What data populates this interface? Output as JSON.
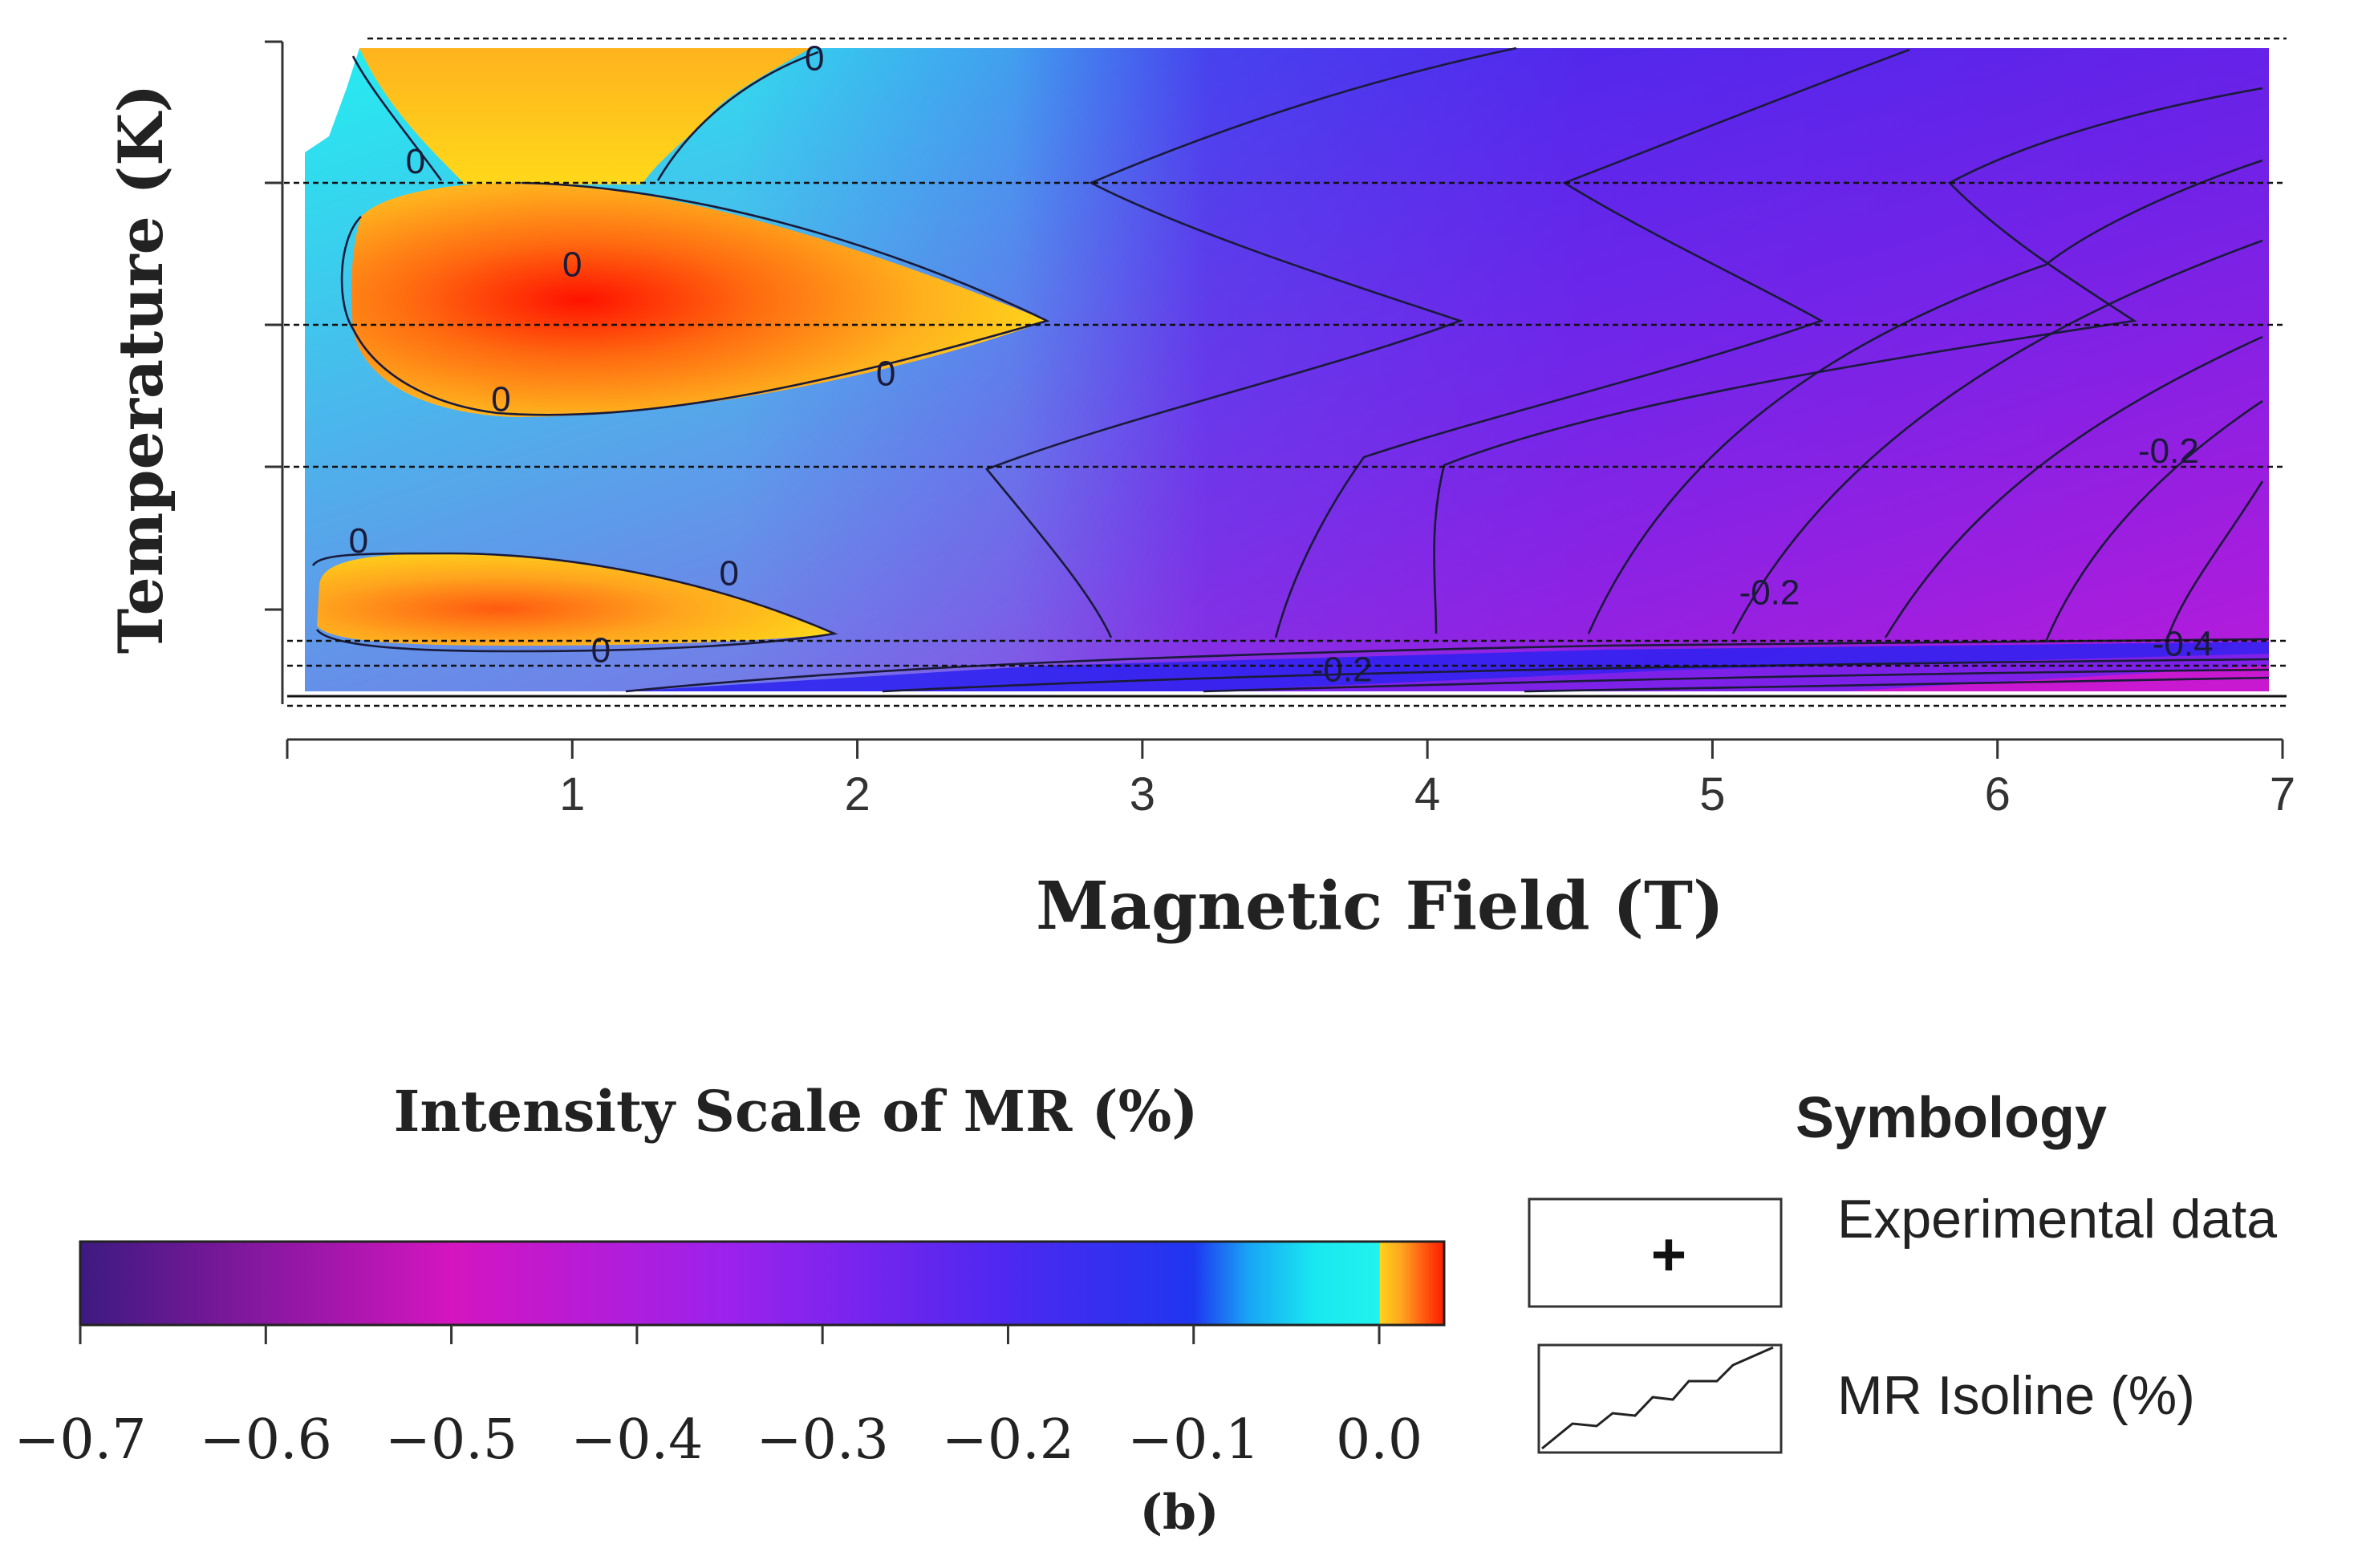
{
  "chart_data": {
    "type": "heatmap",
    "title": "",
    "xlabel": "Magnetic Field (T)",
    "ylabel": "Temperature (K)",
    "xlim": [
      0,
      7
    ],
    "x_ticks": [
      "1",
      "2",
      "3",
      "4",
      "5",
      "6",
      "7"
    ],
    "y_tick_count": 5,
    "caption": "(b)",
    "isoline_labels": [
      {
        "text": "0",
        "x": 1.85,
        "t": 0.02
      },
      {
        "text": "0",
        "x": 0.45,
        "t": 0.18
      },
      {
        "text": "0",
        "x": 1.0,
        "t": 0.34
      },
      {
        "text": "0",
        "x": 2.1,
        "t": 0.51
      },
      {
        "text": "0",
        "x": 0.75,
        "t": 0.55
      },
      {
        "text": "0",
        "x": 0.25,
        "t": 0.77
      },
      {
        "text": "0",
        "x": 1.55,
        "t": 0.82
      },
      {
        "text": "0",
        "x": 1.1,
        "t": 0.94
      },
      {
        "text": "-0.2",
        "x": 6.6,
        "t": 0.63
      },
      {
        "text": "-0.2",
        "x": 5.2,
        "t": 0.85
      },
      {
        "text": "-0.2",
        "x": 3.7,
        "t": 0.97
      },
      {
        "text": "-0.4",
        "x": 6.65,
        "t": 0.93
      }
    ],
    "colorbar": {
      "title": "Intensity Scale of MR (%)",
      "range": [
        -0.7,
        0.035
      ],
      "tick_labels": [
        "−0.7",
        "−0.6",
        "−0.5",
        "−0.4",
        "−0.3",
        "−0.2",
        "−0.1",
        "0.0"
      ],
      "tick_values": [
        -0.7,
        -0.6,
        -0.5,
        -0.4,
        -0.3,
        -0.2,
        -0.1,
        0.0
      ],
      "stops": [
        {
          "value": -0.7,
          "color": "#3d1a80"
        },
        {
          "value": -0.5,
          "color": "#d415c0"
        },
        {
          "value": -0.35,
          "color": "#9b22ec"
        },
        {
          "value": -0.2,
          "color": "#4d28f0"
        },
        {
          "value": -0.1,
          "color": "#1f36f0"
        },
        {
          "value": -0.07,
          "color": "#19a6f5"
        },
        {
          "value": -0.035,
          "color": "#19e8f0"
        },
        {
          "value": 0.0,
          "color": "#22f2ee"
        },
        {
          "value": 0.0005,
          "color": "#ffd21a"
        },
        {
          "value": 0.012,
          "color": "#ffa51e"
        },
        {
          "value": 0.024,
          "color": "#ff5a10"
        },
        {
          "value": 0.035,
          "color": "#ff1a00"
        }
      ]
    }
  },
  "legend": {
    "title": "Symbology",
    "experimental_label": "Experimental data",
    "experimental_symbol": "+",
    "isoline_label": "MR Isoline (%)"
  },
  "colors": {
    "cyan": "#24eef0",
    "blue": "#2a2cf2",
    "magenta": "#b320e0",
    "yellow": "#ffd21a",
    "red": "#ff1e00"
  }
}
